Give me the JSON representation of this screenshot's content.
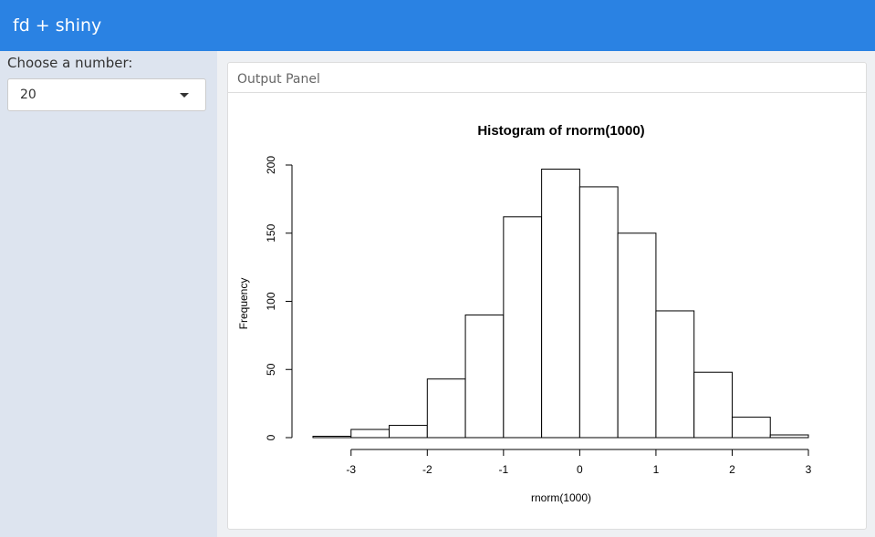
{
  "header": {
    "title": "fd + shiny"
  },
  "sidebar": {
    "label": "Choose a number:",
    "selected": "20"
  },
  "panel": {
    "title": "Output Panel"
  },
  "chart_data": {
    "type": "histogram",
    "title": "Histogram of rnorm(1000)",
    "x_label": "rnorm(1000)",
    "y_label": "Frequency",
    "bins": [
      -3.5,
      -3,
      -2.5,
      -2,
      -1.5,
      -1,
      -0.5,
      0,
      0.5,
      1,
      1.5,
      2,
      2.5,
      3
    ],
    "values": [
      1,
      6,
      9,
      43,
      90,
      162,
      197,
      184,
      150,
      93,
      48,
      15,
      2
    ],
    "color": "#ffffff",
    "xlim": [
      -3.5,
      3
    ],
    "xticks": [
      -3,
      -2,
      -1,
      0,
      1,
      2,
      3
    ],
    "ylim": [
      0,
      200
    ],
    "yticks": [
      0,
      50,
      100,
      150,
      200
    ]
  }
}
